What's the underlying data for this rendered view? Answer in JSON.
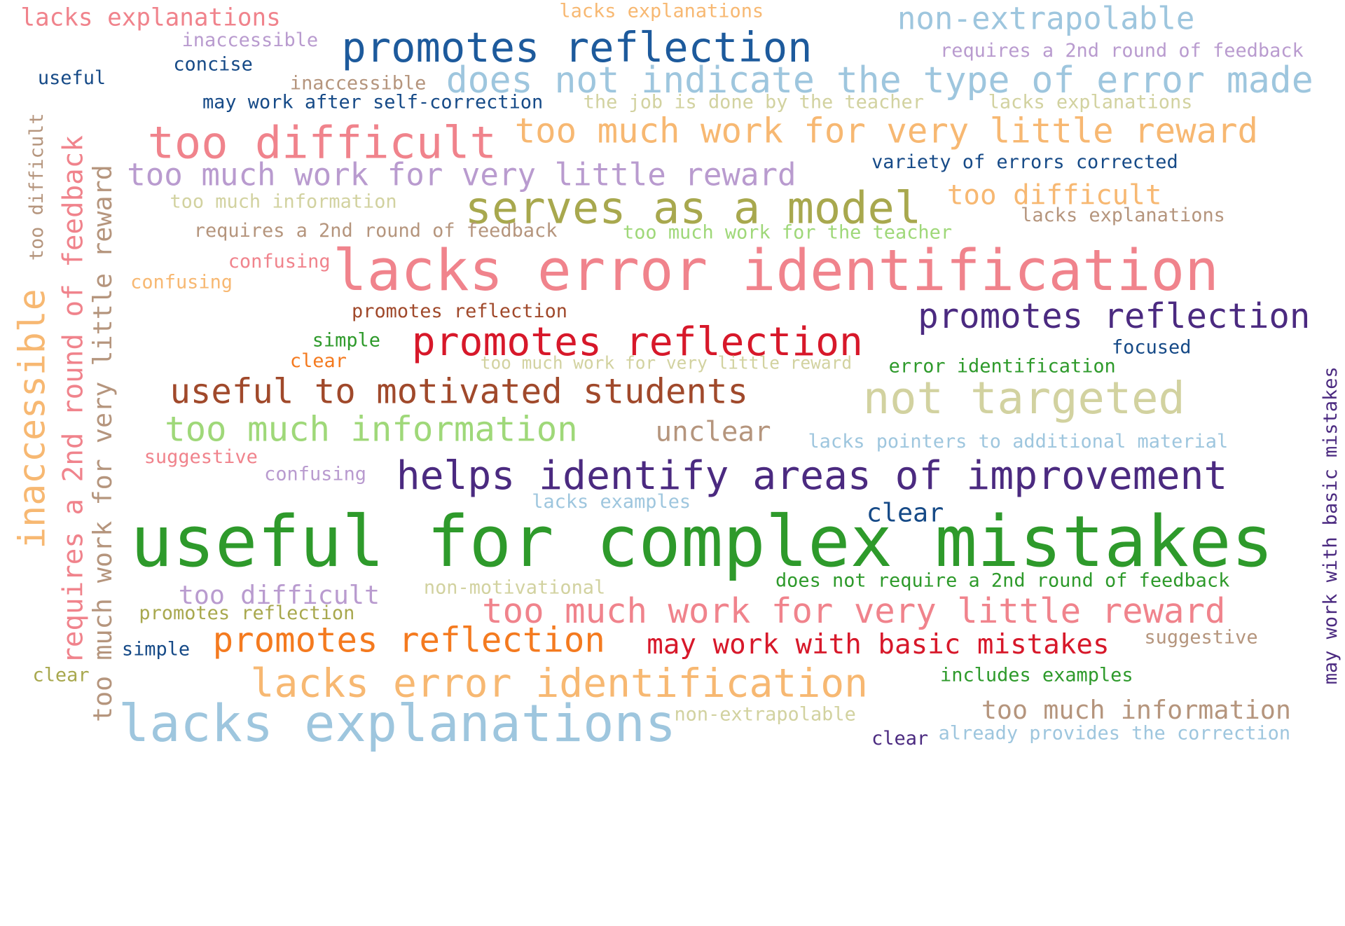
{
  "palette": {
    "pink": "#f0838c",
    "salmon": "#e8858c",
    "light_pink": "#f4a4a8",
    "orange_light": "#f7b872",
    "orange": "#f47a1f",
    "peach": "#f9b87a",
    "light_blue": "#9ec6de",
    "blue": "#1d5a9c",
    "navy": "#164a87",
    "purple": "#4b2a80",
    "lavender": "#b99bcf",
    "brown": "#a0492b",
    "tan": "#b5957d",
    "khaki": "#a8a84e",
    "beige": "#d2d2a0",
    "green": "#2e9a2b",
    "light_green": "#9fd879",
    "red": "#d7182a"
  },
  "words": [
    {
      "text": "useful for complex mistakes",
      "color": "#2e9a2b"
    },
    {
      "text": "lacks error identification",
      "color": "#f0838c"
    },
    {
      "text": "lacks explanations",
      "color": "#9ec6de"
    },
    {
      "text": "helps identify areas of improvement",
      "color": "#4b2a80"
    },
    {
      "text": "lacks error identification",
      "color": "#f7b872"
    },
    {
      "text": "promotes reflection",
      "color": "#d7182a"
    },
    {
      "text": "too difficult",
      "color": "#f0838c"
    },
    {
      "text": "not targeted",
      "color": "#d2d2a0"
    },
    {
      "text": "serves as a model",
      "color": "#a8a84e"
    },
    {
      "text": "promotes reflection",
      "color": "#1d5a9c"
    },
    {
      "text": "does not indicate the type of error made",
      "color": "#9ec6de"
    },
    {
      "text": "too much work for very little reward",
      "color": "#f7b872"
    },
    {
      "text": "too much work for very little reward",
      "color": "#b99bcf"
    },
    {
      "text": "too much work for very little reward",
      "color": "#f0838c"
    },
    {
      "text": "useful to motivated students",
      "color": "#a0492b"
    },
    {
      "text": "too much information",
      "color": "#9fd879"
    },
    {
      "text": "promotes reflection",
      "color": "#4b2a80"
    },
    {
      "text": "promotes reflection",
      "color": "#f47a1f"
    },
    {
      "text": "non-extrapolable",
      "color": "#9ec6de"
    },
    {
      "text": "inaccessible",
      "color": "#f7b872"
    },
    {
      "text": "requires a 2nd round of feedback",
      "color": "#f0838c"
    },
    {
      "text": "too much work for very little reward",
      "color": "#b5957d"
    },
    {
      "text": "lacks explanations",
      "color": "#f0838c"
    },
    {
      "text": "may work with basic mistakes",
      "color": "#d7182a"
    },
    {
      "text": "too much information",
      "color": "#b5957d"
    },
    {
      "text": "too difficult",
      "color": "#b99bcf"
    },
    {
      "text": "too difficult",
      "color": "#f7b872"
    },
    {
      "text": "unclear",
      "color": "#b5957d"
    },
    {
      "text": "clear",
      "color": "#164a87"
    },
    {
      "text": "too difficult",
      "color": "#b5957d"
    },
    {
      "text": "variety of errors corrected",
      "color": "#164a87"
    },
    {
      "text": "may work after self-correction",
      "color": "#164a87"
    },
    {
      "text": "does not require a 2nd round of feedback",
      "color": "#2e9a2b"
    },
    {
      "text": "lacks pointers to additional material",
      "color": "#9ec6de"
    },
    {
      "text": "may work with basic mistakes",
      "color": "#4b2a80"
    },
    {
      "text": "requires a 2nd round of feedback",
      "color": "#b99bcf"
    },
    {
      "text": "requires a 2nd round of feedback",
      "color": "#b5957d"
    },
    {
      "text": "too much work for the teacher",
      "color": "#9fd879"
    },
    {
      "text": "error identification",
      "color": "#2e9a2b"
    },
    {
      "text": "lacks explanations",
      "color": "#b5957d"
    },
    {
      "text": "lacks explanations",
      "color": "#f7b872"
    },
    {
      "text": "lacks explanations",
      "color": "#d2d2a0"
    },
    {
      "text": "promotes reflection",
      "color": "#a0492b"
    },
    {
      "text": "the job is done by the teacher",
      "color": "#d2d2a0"
    },
    {
      "text": "too much information",
      "color": "#d2d2a0"
    },
    {
      "text": "already provides the correction",
      "color": "#9ec6de"
    },
    {
      "text": "includes examples",
      "color": "#2e9a2b"
    },
    {
      "text": "non-extrapolable",
      "color": "#d2d2a0"
    },
    {
      "text": "non-motivational",
      "color": "#d2d2a0"
    },
    {
      "text": "lacks examples",
      "color": "#9ec6de"
    },
    {
      "text": "too much work for very little reward",
      "color": "#d2d2a0"
    },
    {
      "text": "promotes reflection",
      "color": "#a8a84e"
    },
    {
      "text": "inaccessible",
      "color": "#b5957d"
    },
    {
      "text": "inaccessible",
      "color": "#b99bcf"
    },
    {
      "text": "confusing",
      "color": "#f0838c"
    },
    {
      "text": "confusing",
      "color": "#f7b872"
    },
    {
      "text": "confusing",
      "color": "#b99bcf"
    },
    {
      "text": "suggestive",
      "color": "#f0838c"
    },
    {
      "text": "suggestive",
      "color": "#b5957d"
    },
    {
      "text": "focused",
      "color": "#164a87"
    },
    {
      "text": "concise",
      "color": "#164a87"
    },
    {
      "text": "useful",
      "color": "#164a87"
    },
    {
      "text": "simple",
      "color": "#2e9a2b"
    },
    {
      "text": "simple",
      "color": "#164a87"
    },
    {
      "text": "clear",
      "color": "#f47a1f"
    },
    {
      "text": "clear",
      "color": "#a8a84e"
    },
    {
      "text": "clear",
      "color": "#4b2a80"
    }
  ]
}
